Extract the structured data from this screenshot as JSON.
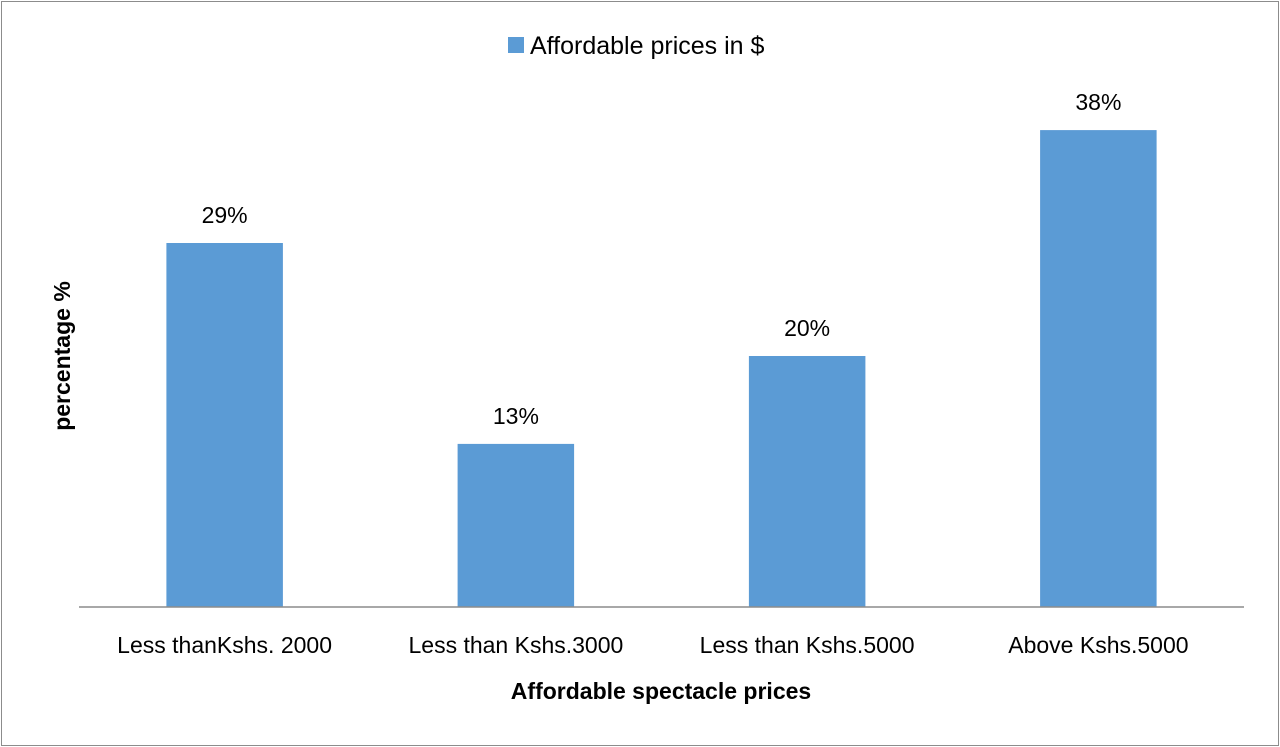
{
  "chart_data": {
    "type": "bar",
    "title": "",
    "xlabel": "Affordable spectacle prices",
    "ylabel": "percentage %",
    "categories": [
      "Less thanKshs. 2000",
      "Less than Kshs.3000",
      "Less than Kshs.5000",
      "Above Kshs.5000"
    ],
    "series": [
      {
        "name": "Affordable prices in $",
        "values": [
          29,
          13,
          20,
          38
        ],
        "labels": [
          "29%",
          "13%",
          "20%",
          "38%"
        ],
        "color": "#5b9bd5"
      }
    ],
    "ylim": [
      0,
      40
    ],
    "grid": false,
    "legend": "top-center"
  },
  "colors": {
    "bar": "#5b9bd5",
    "axis": "#8c8c8c",
    "border": "#8c8c8c"
  }
}
